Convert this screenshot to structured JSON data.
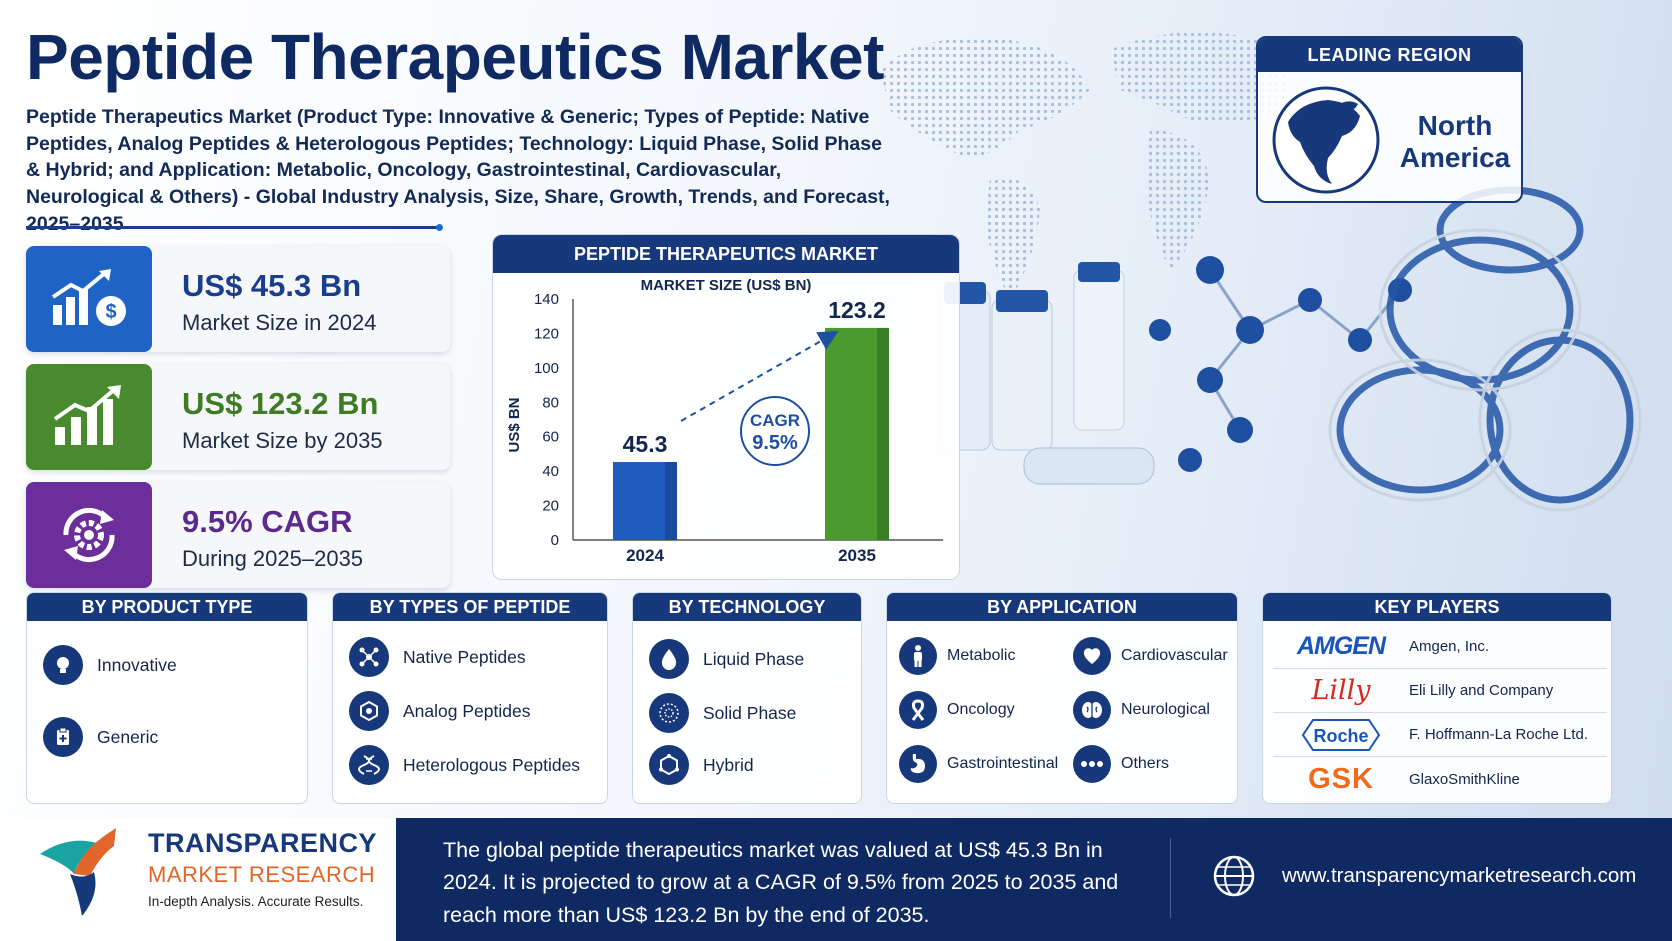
{
  "title": "Peptide Therapeutics Market",
  "subtitle": "Peptide Therapeutics Market (Product Type: Innovative & Generic; Types of Peptide: Native Peptides, Analog Peptides & Heterologous Peptides; Technology: Liquid Phase, Solid Phase & Hybrid; and Application: Metabolic, Oncology, Gastrointestinal, Cardiovascular, Neurological & Others) - Global Industry Analysis, Size, Share, Growth, Trends, and Forecast, 2025–2035",
  "leading_region": {
    "heading": "LEADING REGION",
    "name": "North America"
  },
  "stats": [
    {
      "value": "US$ 45.3 Bn",
      "label": "Market Size in 2024",
      "color": "#1f63c4"
    },
    {
      "value": "US$ 123.2 Bn",
      "label": "Market Size by 2035",
      "color": "#4a8a2e"
    },
    {
      "value": "9.5% CAGR",
      "label": "During 2025–2035",
      "color": "#6b2e9a"
    }
  ],
  "chart_card": {
    "heading": "PEPTIDE THERAPEUTICS MARKET",
    "subheading": "MARKET SIZE (US$ BN)",
    "cagr_label": "CAGR",
    "cagr_value": "9.5%"
  },
  "chart_data": {
    "type": "bar",
    "categories": [
      "2024",
      "2035"
    ],
    "values": [
      45.3,
      123.2
    ],
    "value_labels": [
      "45.3",
      "123.2"
    ],
    "ylabel": "US$ BN",
    "ylim": [
      0,
      140
    ],
    "yticks": [
      "0",
      "20",
      "40",
      "60",
      "80",
      "100",
      "120",
      "140"
    ],
    "colors": [
      "#1f5cc0",
      "#4a9a2e"
    ],
    "grid": false
  },
  "segments": {
    "product_type": {
      "heading": "BY PRODUCT TYPE",
      "items": [
        {
          "label": "Innovative",
          "icon": "lightbulb-icon"
        },
        {
          "label": "Generic",
          "icon": "clipboard-icon"
        }
      ]
    },
    "types_of_peptide": {
      "heading": "BY TYPES OF PEPTIDE",
      "items": [
        {
          "label": "Native Peptides",
          "icon": "molecule-icon"
        },
        {
          "label": "Analog Peptides",
          "icon": "hexagon-icon"
        },
        {
          "label": "Heterologous Peptides",
          "icon": "dna-icon"
        }
      ]
    },
    "technology": {
      "heading": "BY TECHNOLOGY",
      "items": [
        {
          "label": "Liquid Phase",
          "icon": "droplet-icon"
        },
        {
          "label": "Solid Phase",
          "icon": "dots-circle-icon"
        },
        {
          "label": "Hybrid",
          "icon": "hybrid-icon"
        }
      ]
    },
    "application": {
      "heading": "BY APPLICATION",
      "items": [
        {
          "label": "Metabolic",
          "icon": "body-icon"
        },
        {
          "label": "Cardiovascular",
          "icon": "heart-icon"
        },
        {
          "label": "Oncology",
          "icon": "ribbon-icon"
        },
        {
          "label": "Neurological",
          "icon": "brain-icon"
        },
        {
          "label": "Gastrointestinal",
          "icon": "stomach-icon"
        },
        {
          "label": "Others",
          "icon": "ellipsis-icon"
        }
      ]
    }
  },
  "key_players": {
    "heading": "KEY PLAYERS",
    "items": [
      {
        "logo": "AMGEN",
        "name": "Amgen, Inc."
      },
      {
        "logo": "Lilly",
        "name": "Eli Lilly and Company"
      },
      {
        "logo": "Roche",
        "name": "F. Hoffmann-La Roche Ltd."
      },
      {
        "logo": "GSK",
        "name": "GlaxoSmithKline"
      }
    ]
  },
  "footer": {
    "brand_line1": "TRANSPARENCY",
    "brand_line2": "MARKET RESEARCH",
    "tagline": "In-depth Analysis. Accurate Results.",
    "summary": "The global peptide therapeutics market was valued at US$ 45.3 Bn in 2024. It is projected to grow at a CAGR of 9.5% from 2025 to 2035 and reach more than US$ 123.2 Bn by the end of 2035.",
    "url": "www.transparencymarketresearch.com"
  }
}
